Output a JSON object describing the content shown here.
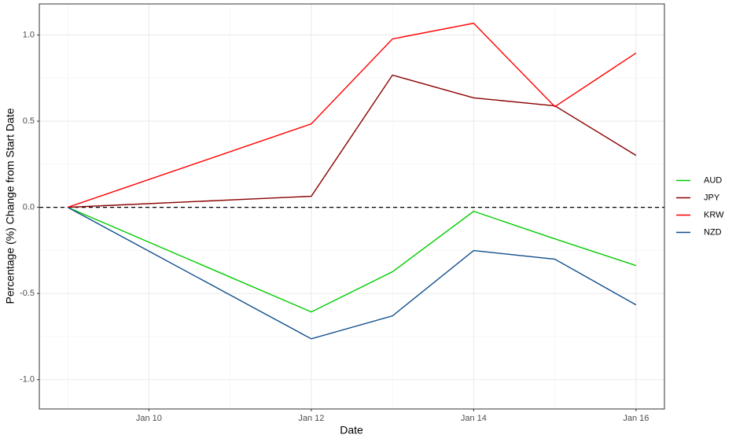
{
  "chart_data": {
    "type": "line",
    "xlabel": "Date",
    "ylabel": "Percentage (%) Change from Start Date",
    "x": [
      9,
      12,
      13,
      14,
      15,
      16
    ],
    "xlim": [
      8.65,
      16.35
    ],
    "xticks": [
      {
        "value": 10,
        "label": "Jan 10"
      },
      {
        "value": 12,
        "label": "Jan 12"
      },
      {
        "value": 14,
        "label": "Jan 14"
      },
      {
        "value": 16,
        "label": "Jan 16"
      }
    ],
    "xminor": [
      9,
      11,
      13,
      15
    ],
    "ylim": [
      -1.17,
      1.18
    ],
    "yticks": [
      {
        "value": -1,
        "label": "-1.0"
      },
      {
        "value": -0.5,
        "label": "-0.5"
      },
      {
        "value": 0,
        "label": "0.0"
      },
      {
        "value": 0.5,
        "label": "0.5"
      },
      {
        "value": 1,
        "label": "1.0"
      }
    ],
    "yminor": [
      -0.75,
      -0.25,
      0.25,
      0.75
    ],
    "grid": true,
    "reference_line": 0,
    "legend": "right",
    "series": [
      {
        "name": "AUD",
        "color": "#00cc00",
        "values": [
          0,
          -0.607,
          -0.374,
          -0.023,
          -0.183,
          -0.338
        ]
      },
      {
        "name": "JPY",
        "color": "#8b0000",
        "values": [
          0,
          0.064,
          0.767,
          0.635,
          0.589,
          0.301
        ]
      },
      {
        "name": "KRW",
        "color": "#ff0000",
        "values": [
          0,
          0.484,
          0.977,
          1.068,
          0.584,
          0.895
        ]
      },
      {
        "name": "NZD",
        "color": "#104e8b",
        "values": [
          0,
          -0.763,
          -0.63,
          -0.251,
          -0.301,
          -0.566
        ]
      }
    ]
  }
}
